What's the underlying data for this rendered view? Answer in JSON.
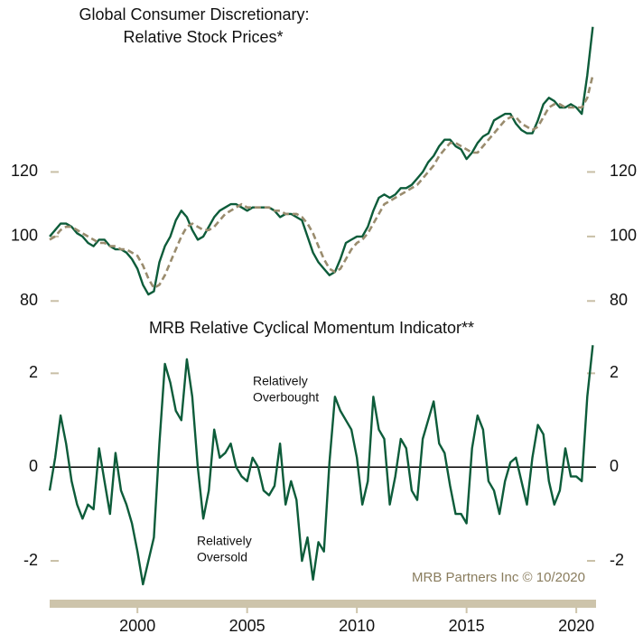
{
  "chart_data": [
    {
      "type": "line",
      "title": [
        "Global Consumer Discretionary:",
        "Relative Stock Prices*"
      ],
      "x": [
        1996,
        1996.25,
        1996.5,
        1996.75,
        1997,
        1997.25,
        1997.5,
        1997.75,
        1998,
        1998.25,
        1998.5,
        1998.75,
        1999,
        1999.25,
        1999.5,
        1999.75,
        2000,
        2000.25,
        2000.5,
        2000.75,
        2001,
        2001.25,
        2001.5,
        2001.75,
        2002,
        2002.25,
        2002.5,
        2002.75,
        2003,
        2003.25,
        2003.5,
        2003.75,
        2004,
        2004.25,
        2004.5,
        2004.75,
        2005,
        2005.25,
        2005.5,
        2005.75,
        2006,
        2006.25,
        2006.5,
        2006.75,
        2007,
        2007.25,
        2007.5,
        2007.75,
        2008,
        2008.25,
        2008.5,
        2008.75,
        2009,
        2009.25,
        2009.5,
        2009.75,
        2010,
        2010.25,
        2010.5,
        2010.75,
        2011,
        2011.25,
        2011.5,
        2011.75,
        2012,
        2012.25,
        2012.5,
        2012.75,
        2013,
        2013.25,
        2013.5,
        2013.75,
        2014,
        2014.25,
        2014.5,
        2014.75,
        2015,
        2015.25,
        2015.5,
        2015.75,
        2016,
        2016.25,
        2016.5,
        2016.75,
        2017,
        2017.25,
        2017.5,
        2017.75,
        2018,
        2018.25,
        2018.5,
        2018.75,
        2019,
        2019.25,
        2019.5,
        2019.75,
        2020,
        2020.25,
        2020.5,
        2020.75
      ],
      "series": [
        {
          "color": "#0d5c3a",
          "style": "solid",
          "values": [
            100,
            102,
            104,
            104,
            103,
            101,
            100,
            98,
            97,
            99,
            99,
            97,
            96,
            96,
            95,
            93,
            90,
            85,
            82,
            83,
            92,
            97,
            100,
            105,
            108,
            106,
            102,
            99,
            100,
            103,
            106,
            108,
            109,
            110,
            110,
            109,
            108,
            109,
            109,
            109,
            109,
            108,
            106,
            107,
            107,
            106,
            105,
            100,
            95,
            92,
            90,
            88,
            89,
            93,
            98,
            99,
            100,
            100,
            103,
            108,
            112,
            113,
            112,
            113,
            115,
            115,
            116,
            118,
            120,
            123,
            125,
            128,
            130,
            130,
            128,
            127,
            124,
            126,
            129,
            131,
            132,
            136,
            137,
            138,
            138,
            135,
            133,
            132,
            132,
            136,
            141,
            143,
            142,
            140,
            140,
            141,
            140,
            138,
            150,
            165
          ]
        },
        {
          "color": "#9a8c6e",
          "style": "dashed",
          "values": [
            99,
            100,
            102,
            103,
            103,
            102,
            101,
            100,
            99,
            98,
            98,
            97,
            97,
            96,
            96,
            95,
            94,
            91,
            87,
            84,
            85,
            88,
            92,
            96,
            100,
            103,
            104,
            103,
            102,
            102,
            103,
            105,
            107,
            108,
            109,
            110,
            109,
            109,
            109,
            109,
            109,
            108,
            108,
            107,
            107,
            107,
            106,
            104,
            101,
            97,
            93,
            90,
            89,
            90,
            93,
            96,
            98,
            99,
            101,
            104,
            107,
            110,
            111,
            112,
            113,
            114,
            115,
            116,
            118,
            120,
            122,
            125,
            127,
            129,
            129,
            128,
            127,
            126,
            126,
            128,
            130,
            132,
            134,
            136,
            137,
            137,
            135,
            134,
            133,
            134,
            137,
            140,
            141,
            141,
            140,
            140,
            140,
            140,
            143,
            150
          ]
        }
      ],
      "xlim": [
        1996,
        2020.9
      ],
      "ylim": [
        77,
        168
      ],
      "yticks": [
        80,
        100,
        120
      ]
    },
    {
      "type": "line",
      "title": "MRB Relative Cyclical Momentum Indicator**",
      "x": [
        1996,
        1996.25,
        1996.5,
        1996.75,
        1997,
        1997.25,
        1997.5,
        1997.75,
        1998,
        1998.25,
        1998.5,
        1998.75,
        1999,
        1999.25,
        1999.5,
        1999.75,
        2000,
        2000.25,
        2000.5,
        2000.75,
        2001,
        2001.25,
        2001.5,
        2001.75,
        2002,
        2002.25,
        2002.5,
        2002.75,
        2003,
        2003.25,
        2003.5,
        2003.75,
        2004,
        2004.25,
        2004.5,
        2004.75,
        2005,
        2005.25,
        2005.5,
        2005.75,
        2006,
        2006.25,
        2006.5,
        2006.75,
        2007,
        2007.25,
        2007.5,
        2007.75,
        2008,
        2008.25,
        2008.5,
        2008.75,
        2009,
        2009.25,
        2009.5,
        2009.75,
        2010,
        2010.25,
        2010.5,
        2010.75,
        2011,
        2011.25,
        2011.5,
        2011.75,
        2012,
        2012.25,
        2012.5,
        2012.75,
        2013,
        2013.25,
        2013.5,
        2013.75,
        2014,
        2014.25,
        2014.5,
        2014.75,
        2015,
        2015.25,
        2015.5,
        2015.75,
        2016,
        2016.25,
        2016.5,
        2016.75,
        2017,
        2017.25,
        2017.5,
        2017.75,
        2018,
        2018.25,
        2018.5,
        2018.75,
        2019,
        2019.25,
        2019.5,
        2019.75,
        2020,
        2020.25,
        2020.5,
        2020.75
      ],
      "series": [
        {
          "color": "#0d5c3a",
          "style": "solid",
          "values": [
            -0.5,
            0.2,
            1.1,
            0.5,
            -0.3,
            -0.8,
            -1.1,
            -0.8,
            -0.9,
            0.4,
            -0.3,
            -1.0,
            0.3,
            -0.5,
            -0.8,
            -1.2,
            -1.8,
            -2.5,
            -2.0,
            -1.5,
            0.5,
            2.2,
            1.8,
            1.2,
            1.0,
            2.3,
            1.5,
            0.0,
            -1.1,
            -0.5,
            0.8,
            0.2,
            0.3,
            0.5,
            0.0,
            -0.2,
            -0.3,
            0.2,
            0.0,
            -0.5,
            -0.6,
            -0.4,
            0.5,
            -0.8,
            -0.3,
            -0.7,
            -2.0,
            -1.5,
            -2.4,
            -1.6,
            -1.8,
            0.1,
            1.5,
            1.2,
            1.0,
            0.8,
            0.2,
            -0.8,
            -0.3,
            1.5,
            0.8,
            0.6,
            -0.8,
            -0.2,
            0.6,
            0.4,
            -0.5,
            -0.7,
            0.6,
            1.0,
            1.4,
            0.5,
            0.3,
            -0.4,
            -1.0,
            -1.0,
            -1.2,
            0.4,
            1.1,
            0.8,
            -0.3,
            -0.5,
            -1.0,
            -0.3,
            0.1,
            0.2,
            -0.3,
            -0.8,
            0.2,
            0.9,
            0.7,
            -0.3,
            -0.8,
            -0.5,
            0.4,
            -0.2,
            -0.2,
            -0.3,
            1.5,
            2.6
          ]
        }
      ],
      "annotations": [
        [
          "Relatively",
          "Overbought"
        ],
        [
          "Relatively",
          "Oversold"
        ]
      ],
      "credit": "MRB Partners Inc © 10/2020",
      "xlim": [
        1996,
        2020.9
      ],
      "ylim": [
        -2.75,
        2.7
      ],
      "yticks": [
        -2,
        0,
        2
      ],
      "xticks": [
        2000,
        2005,
        2010,
        2015,
        2020
      ],
      "zero_line": true
    }
  ]
}
